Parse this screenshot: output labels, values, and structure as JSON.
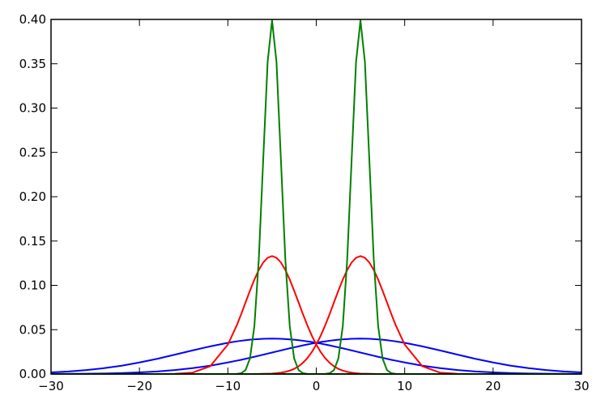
{
  "chart_data": {
    "type": "line",
    "x": [
      -30,
      -28,
      -26,
      -24,
      -22,
      -20,
      -18,
      -16,
      -14,
      -12,
      -10,
      -9,
      -8.5,
      -8,
      -7.5,
      -7,
      -6.5,
      -6,
      -5.5,
      -5,
      -4.5,
      -4,
      -3.5,
      -3,
      -2.5,
      -2,
      -1.5,
      -1,
      -0.5,
      0,
      0.5,
      1,
      1.5,
      2,
      2.5,
      3,
      3.5,
      4,
      4.5,
      5,
      5.5,
      6,
      6.5,
      7,
      7.5,
      8,
      8.5,
      9,
      10,
      12,
      14,
      16,
      18,
      20,
      22,
      24,
      26,
      28,
      30
    ],
    "series": [
      {
        "color": "#0000ff",
        "values": [
          0.0018,
          0.0028,
          0.0044,
          0.0066,
          0.0094,
          0.013,
          0.0171,
          0.0218,
          0.0266,
          0.0312,
          0.0352,
          0.0368,
          0.0375,
          0.0381,
          0.0387,
          0.0391,
          0.0394,
          0.0397,
          0.0398,
          0.0399,
          0.0398,
          0.0397,
          0.0394,
          0.0391,
          0.0387,
          0.0381,
          0.0375,
          0.0368,
          0.0361,
          0.0352,
          0.0343,
          0.0333,
          0.0323,
          0.0312,
          0.0301,
          0.029,
          0.0278,
          0.0266,
          0.0254,
          0.0242,
          0.023,
          0.0218,
          0.0206,
          0.0194,
          0.0183,
          0.0171,
          0.016,
          0.015,
          0.013,
          0.0094,
          0.0066,
          0.0044,
          0.0028,
          0.0018,
          0.001,
          0.0006,
          0.0003,
          0.0002,
          0.0001
        ]
      },
      {
        "color": "#0000ff",
        "values": [
          0.0001,
          0.0002,
          0.0003,
          0.0006,
          0.001,
          0.0018,
          0.0028,
          0.0044,
          0.0066,
          0.0094,
          0.013,
          0.015,
          0.016,
          0.0171,
          0.0183,
          0.0194,
          0.0206,
          0.0218,
          0.023,
          0.0242,
          0.0254,
          0.0266,
          0.0278,
          0.029,
          0.0301,
          0.0312,
          0.0323,
          0.0333,
          0.0343,
          0.0352,
          0.0361,
          0.0368,
          0.0375,
          0.0381,
          0.0387,
          0.0391,
          0.0394,
          0.0397,
          0.0398,
          0.0399,
          0.0398,
          0.0397,
          0.0394,
          0.0391,
          0.0387,
          0.0381,
          0.0375,
          0.0368,
          0.0352,
          0.0312,
          0.0266,
          0.0218,
          0.0171,
          0.013,
          0.0094,
          0.0066,
          0.0044,
          0.0028,
          0.0018
        ]
      },
      {
        "color": "#ff0000",
        "values": [
          0,
          0,
          0,
          0,
          0,
          0,
          0,
          0.0002,
          0.0015,
          0.0087,
          0.0332,
          0.0547,
          0.0673,
          0.0807,
          0.094,
          0.1065,
          0.1174,
          0.1258,
          0.1311,
          0.133,
          0.1311,
          0.1258,
          0.1174,
          0.1065,
          0.094,
          0.0807,
          0.0673,
          0.0547,
          0.0432,
          0.0332,
          0.0248,
          0.018,
          0.0127,
          0.0087,
          0.0058,
          0.0038,
          0.0024,
          0.0015,
          0.0009,
          0.0005,
          0.0003,
          0.0002,
          0.0001,
          0,
          0,
          0,
          0,
          0,
          0,
          0,
          0,
          0,
          0,
          0,
          0,
          0,
          0,
          0,
          0
        ]
      },
      {
        "color": "#ff0000",
        "values": [
          0,
          0,
          0,
          0,
          0,
          0,
          0,
          0,
          0,
          0,
          0,
          0,
          0,
          0,
          0,
          0,
          0.0001,
          0.0002,
          0.0003,
          0.0005,
          0.0009,
          0.0015,
          0.0024,
          0.0038,
          0.0058,
          0.0087,
          0.0127,
          0.018,
          0.0248,
          0.0332,
          0.0432,
          0.0547,
          0.0673,
          0.0807,
          0.094,
          0.1065,
          0.1174,
          0.1258,
          0.1311,
          0.133,
          0.1311,
          0.1258,
          0.1174,
          0.1065,
          0.094,
          0.0807,
          0.0673,
          0.0547,
          0.0332,
          0.0087,
          0.0015,
          0.0002,
          0,
          0,
          0,
          0,
          0,
          0,
          0
        ]
      },
      {
        "color": "#008000",
        "values": [
          0,
          0,
          0,
          0,
          0,
          0,
          0,
          0,
          0,
          0,
          0,
          0.0001,
          0.0009,
          0.0044,
          0.0175,
          0.054,
          0.1295,
          0.242,
          0.3521,
          0.3989,
          0.3521,
          0.242,
          0.1295,
          0.054,
          0.0175,
          0.0044,
          0.0009,
          0.0001,
          0,
          0,
          0,
          0,
          0,
          0,
          0,
          0,
          0,
          0,
          0,
          0,
          0,
          0,
          0,
          0,
          0,
          0,
          0,
          0,
          0,
          0,
          0,
          0,
          0,
          0,
          0,
          0,
          0,
          0,
          0
        ]
      },
      {
        "color": "#008000",
        "values": [
          0,
          0,
          0,
          0,
          0,
          0,
          0,
          0,
          0,
          0,
          0,
          0,
          0,
          0,
          0,
          0,
          0,
          0,
          0,
          0,
          0,
          0,
          0,
          0,
          0,
          0,
          0,
          0,
          0,
          0,
          0,
          0.0001,
          0.0009,
          0.0044,
          0.0175,
          0.054,
          0.1295,
          0.242,
          0.3521,
          0.3989,
          0.3521,
          0.242,
          0.1295,
          0.054,
          0.0175,
          0.0044,
          0.0009,
          0.0001,
          0,
          0,
          0,
          0,
          0,
          0,
          0,
          0,
          0,
          0,
          0
        ]
      }
    ],
    "xlim": [
      -30,
      30
    ],
    "xticks": [
      {
        "value": -30,
        "label": "−30"
      },
      {
        "value": -20,
        "label": "−20"
      },
      {
        "value": -10,
        "label": "−10"
      },
      0,
      10,
      20,
      30
    ],
    "ylim": [
      0,
      0.4
    ],
    "yticks": [
      {
        "value": 0,
        "label": "0.00"
      },
      {
        "value": 0.05,
        "label": "0.05"
      },
      {
        "value": 0.1,
        "label": "0.10"
      },
      {
        "value": 0.15,
        "label": "0.15"
      },
      {
        "value": 0.2,
        "label": "0.20"
      },
      {
        "value": 0.25,
        "label": "0.25"
      },
      {
        "value": 0.3,
        "label": "0.30"
      },
      {
        "value": 0.35,
        "label": "0.35"
      },
      {
        "value": 0.4,
        "label": "0.40"
      }
    ],
    "grid": false
  }
}
